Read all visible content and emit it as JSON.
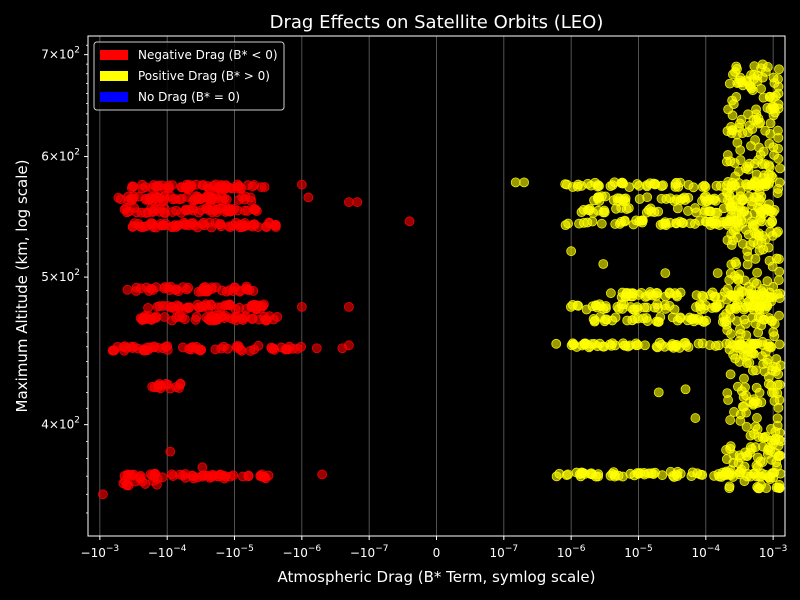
{
  "chart_data": {
    "type": "scatter",
    "title": "Drag Effects on Satellite Orbits (LEO)",
    "xlabel": "Atmospheric Drag (B* Term, symlog scale)",
    "ylabel": "Maximum Altitude (km, log scale)",
    "xscale": "symlog",
    "linthresh": 1e-07,
    "xlim": [
      -0.0015,
      0.0015
    ],
    "yscale": "log",
    "ylim": [
      338,
      720
    ],
    "grid": "vertical-only",
    "background": "#000000",
    "xticks": [
      {
        "value": -0.001,
        "label": "−10",
        "exp": "−3"
      },
      {
        "value": -0.0001,
        "label": "−10",
        "exp": "−4"
      },
      {
        "value": -1e-05,
        "label": "−10",
        "exp": "−5"
      },
      {
        "value": -1e-06,
        "label": "−10",
        "exp": "−6"
      },
      {
        "value": -1e-07,
        "label": "−10",
        "exp": "−7"
      },
      {
        "value": 0,
        "label": "0",
        "exp": ""
      },
      {
        "value": 1e-07,
        "label": "10",
        "exp": "−7"
      },
      {
        "value": 1e-06,
        "label": "10",
        "exp": "−6"
      },
      {
        "value": 1e-05,
        "label": "10",
        "exp": "−5"
      },
      {
        "value": 0.0001,
        "label": "10",
        "exp": "−4"
      },
      {
        "value": 0.001,
        "label": "10",
        "exp": "−3"
      }
    ],
    "yticks": [
      {
        "value": 400,
        "mant": "4",
        "exp": "2"
      },
      {
        "value": 500,
        "mant": "5",
        "exp": "2"
      },
      {
        "value": 600,
        "mant": "6",
        "exp": "2"
      },
      {
        "value": 700,
        "mant": "7",
        "exp": "2"
      }
    ],
    "legend": {
      "position": "upper-left",
      "items": [
        {
          "label": "Negative Drag (B* < 0)",
          "color": "#ff0000"
        },
        {
          "label": "Positive Drag (B* > 0)",
          "color": "#ffff00"
        },
        {
          "label": "No Drag (B* = 0)",
          "color": "#0000ff"
        }
      ]
    },
    "series": [
      {
        "name": "Negative Drag (B* < 0)",
        "color": "#ff0000",
        "bands": [
          {
            "alt": 573,
            "xmin": -0.00035,
            "xmax": -3.5e-06,
            "n": 60
          },
          {
            "alt": 563,
            "xmin": -0.0006,
            "xmax": -5e-06,
            "n": 60
          },
          {
            "alt": 553,
            "xmin": -0.0005,
            "xmax": -4.5e-06,
            "n": 55
          },
          {
            "alt": 541,
            "xmin": -0.00035,
            "xmax": -2e-06,
            "n": 65
          },
          {
            "alt": 491,
            "xmin": -0.0004,
            "xmax": -4e-06,
            "n": 45
          },
          {
            "alt": 478,
            "xmin": -0.0002,
            "xmax": -3.5e-06,
            "n": 50
          },
          {
            "alt": 470,
            "xmin": -0.00025,
            "xmax": -2e-06,
            "n": 55
          },
          {
            "alt": 449,
            "xmin": -0.0007,
            "xmax": -1e-06,
            "n": 60
          },
          {
            "alt": 424,
            "xmin": -0.0004,
            "xmax": -6e-05,
            "n": 14
          },
          {
            "alt": 370,
            "xmin": -0.00045,
            "xmax": -2.5e-06,
            "n": 55
          },
          {
            "alt": 366,
            "xmin": -0.00045,
            "xmax": -8e-05,
            "n": 10
          }
        ],
        "points": [
          {
            "x": -0.0009,
            "y": 360
          },
          {
            "x": -9e-05,
            "y": 384
          },
          {
            "x": -3e-05,
            "y": 375
          },
          {
            "x": -5e-07,
            "y": 371
          },
          {
            "x": -2e-07,
            "y": 560
          },
          {
            "x": -1.5e-07,
            "y": 560
          },
          {
            "x": -2e-07,
            "y": 478
          },
          {
            "x": -2e-07,
            "y": 451
          },
          {
            "x": -2.5e-07,
            "y": 449
          },
          {
            "x": -6e-07,
            "y": 449
          },
          {
            "x": -4e-08,
            "y": 544
          },
          {
            "x": -1e-06,
            "y": 478
          },
          {
            "x": -8e-07,
            "y": 564
          },
          {
            "x": -1e-06,
            "y": 575
          }
        ]
      },
      {
        "name": "Positive Drag (B* > 0)",
        "color": "#ffff00",
        "bands": [
          {
            "alt": 575,
            "xmin": 7e-07,
            "xmax": 0.001,
            "n": 60
          },
          {
            "alt": 563,
            "xmin": 2e-06,
            "xmax": 0.001,
            "n": 50
          },
          {
            "alt": 553,
            "xmin": 8e-07,
            "xmax": 0.001,
            "n": 45
          },
          {
            "alt": 543,
            "xmin": 8e-07,
            "xmax": 0.001,
            "n": 60
          },
          {
            "alt": 487,
            "xmin": 3e-06,
            "xmax": 0.001,
            "n": 55
          },
          {
            "alt": 478,
            "xmin": 8e-07,
            "xmax": 0.001,
            "n": 60
          },
          {
            "alt": 469,
            "xmin": 2e-06,
            "xmax": 0.001,
            "n": 45
          },
          {
            "alt": 451,
            "xmin": 9e-07,
            "xmax": 0.001,
            "n": 70
          },
          {
            "alt": 371,
            "xmin": 6e-07,
            "xmax": 0.0012,
            "n": 70
          }
        ],
        "clusters": [
          {
            "x0": 0.0002,
            "x1": 0.0013,
            "ymin": 363,
            "ymax": 690,
            "n": 420
          }
        ],
        "points": [
          {
            "x": 1.5e-07,
            "y": 577
          },
          {
            "x": 2e-07,
            "y": 577
          },
          {
            "x": 6e-07,
            "y": 452
          },
          {
            "x": 1e-06,
            "y": 520
          },
          {
            "x": 3e-06,
            "y": 510
          },
          {
            "x": 2e-05,
            "y": 420
          },
          {
            "x": 2.5e-05,
            "y": 503
          },
          {
            "x": 5e-05,
            "y": 422
          },
          {
            "x": 7e-05,
            "y": 404
          },
          {
            "x": 0.0002,
            "y": 385
          },
          {
            "x": 0.00015,
            "y": 503
          }
        ]
      },
      {
        "name": "No Drag (B* = 0)",
        "color": "#0000ff",
        "points": []
      }
    ]
  }
}
